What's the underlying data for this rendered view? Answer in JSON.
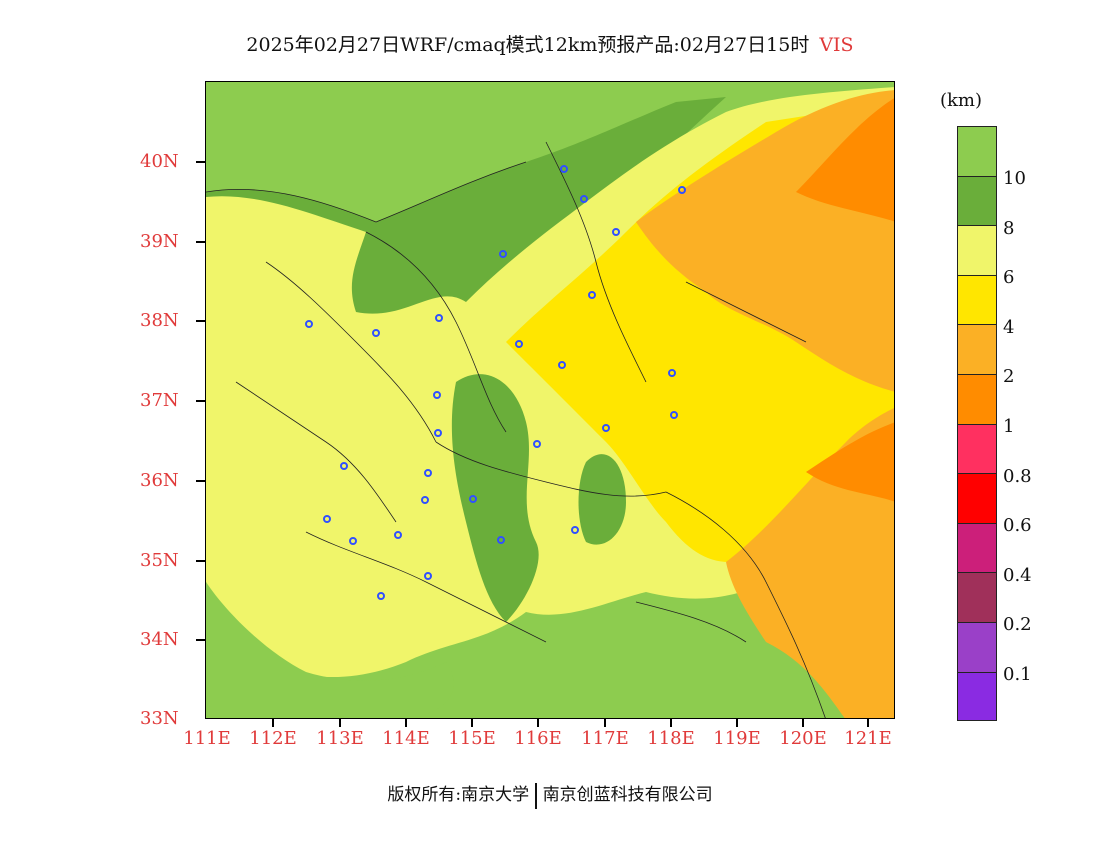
{
  "title": {
    "main": "2025年02月27日WRF/cmaq模式12km预报产品:02月27日15时",
    "variable": "VIS"
  },
  "map": {
    "lat_labels": [
      "40N",
      "39N",
      "38N",
      "37N",
      "36N",
      "35N",
      "34N",
      "33N"
    ],
    "lon_labels": [
      "111E",
      "112E",
      "113E",
      "114E",
      "115E",
      "116E",
      "117E",
      "118E",
      "119E",
      "120E",
      "121E"
    ]
  },
  "legend": {
    "unit": "(km)",
    "labels": [
      "10",
      "8",
      "6",
      "4",
      "2",
      "1",
      "0.8",
      "0.6",
      "0.4",
      "0.2",
      "0.1"
    ],
    "colors": [
      "#8dcc4f",
      "#6aae3a",
      "#f0f56a",
      "#ffe600",
      "#fbb025",
      "#ff8c00",
      "#ff3060",
      "#ff0000",
      "#cc1f7a",
      "#a0305a",
      "#9a40c8",
      "#8a2be2"
    ]
  },
  "footer": {
    "copyright": "版权所有:南京大学",
    "company": "南京创蓝科技有限公司"
  }
}
